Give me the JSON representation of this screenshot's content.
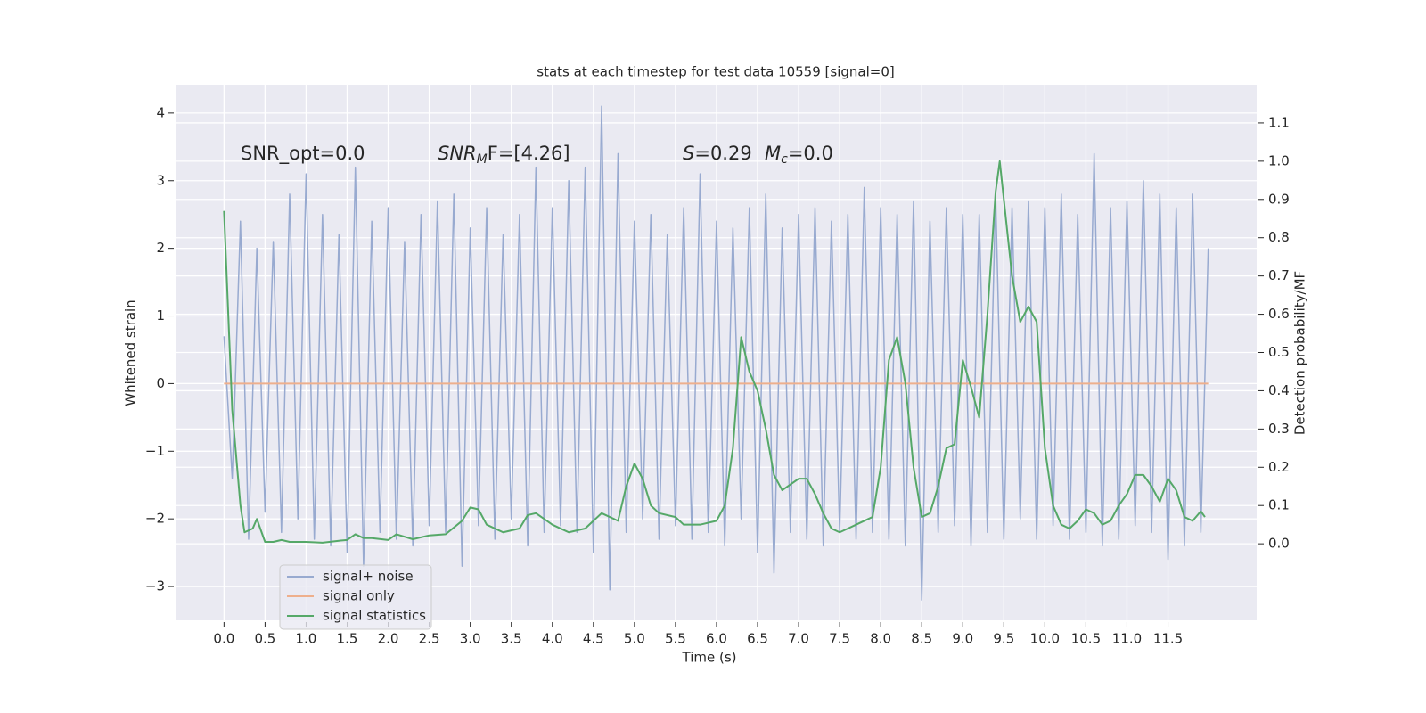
{
  "chart_data": {
    "type": "line",
    "title": "stats at each timestep for test data 10559 [signal=0]",
    "x_label": "Time (s)",
    "y_label": "Whitened strain",
    "y2_label": "Detection probability/MF",
    "xlim": [
      -0.59,
      12.58
    ],
    "ylim": [
      -3.5,
      4.42
    ],
    "y2lim": [
      -0.2,
      1.2
    ],
    "xticks": [
      {
        "value": 0,
        "label": "0.0"
      },
      0.5,
      {
        "value": 1,
        "label": "1.0"
      },
      1.5,
      {
        "value": 2,
        "label": "2.0"
      },
      2.5,
      {
        "value": 3,
        "label": "3.0"
      },
      3.5,
      {
        "value": 4,
        "label": "4.0"
      },
      4.5,
      {
        "value": 5,
        "label": "5.0"
      },
      5.5,
      {
        "value": 6,
        "label": "6.0"
      },
      6.5,
      {
        "value": 7,
        "label": "7.0"
      },
      7.5,
      {
        "value": 8,
        "label": "8.0"
      },
      8.5,
      {
        "value": 9,
        "label": "9.0"
      },
      9.5,
      {
        "value": 10,
        "label": "10.0"
      },
      10.5,
      {
        "value": 11,
        "label": "11.0"
      },
      11.5
    ],
    "yticks": [
      {
        "value": -3,
        "label": "−3"
      },
      {
        "value": -2,
        "label": "−2"
      },
      {
        "value": -1,
        "label": "−1"
      },
      0,
      1,
      2,
      3,
      4
    ],
    "y2ticks": [
      {
        "value": 0,
        "label": "0.0"
      },
      0.1,
      0.2,
      0.3,
      0.4,
      0.5,
      0.6,
      0.7,
      0.8,
      0.9,
      {
        "value": 1,
        "label": "1.0"
      },
      1.1
    ],
    "grid": true,
    "legend": "lower left",
    "annotations": [
      {
        "text": "SNR_opt=0.0"
      },
      {
        "base": "SNR",
        "sub": "M",
        "rest": "F=[4.26]"
      },
      {
        "base": "S",
        "rest": "=0.29"
      },
      {
        "base": "M",
        "sub": "c",
        "rest": "=0.0"
      }
    ],
    "series": [
      {
        "name": "signal+ noise",
        "color": "#98aad0",
        "axis": "y",
        "x": [
          0,
          0.1,
          0.2,
          0.3,
          0.4,
          0.5,
          0.6,
          0.7,
          0.8,
          0.9,
          1,
          1.1,
          1.2,
          1.3,
          1.4,
          1.5,
          1.6,
          1.7,
          1.8,
          1.9,
          2,
          2.1,
          2.2,
          2.3,
          2.4,
          2.5,
          2.6,
          2.7,
          2.8,
          2.9,
          3,
          3.1,
          3.2,
          3.3,
          3.4,
          3.5,
          3.6,
          3.7,
          3.8,
          3.9,
          4,
          4.1,
          4.2,
          4.3,
          4.4,
          4.5,
          4.6,
          4.7,
          4.8,
          4.9,
          5,
          5.1,
          5.2,
          5.3,
          5.4,
          5.5,
          5.6,
          5.7,
          5.8,
          5.9,
          6,
          6.1,
          6.2,
          6.3,
          6.4,
          6.5,
          6.6,
          6.7,
          6.8,
          6.9,
          7,
          7.1,
          7.2,
          7.3,
          7.4,
          7.5,
          7.6,
          7.7,
          7.8,
          7.9,
          8,
          8.1,
          8.2,
          8.3,
          8.4,
          8.5,
          8.6,
          8.7,
          8.8,
          8.9,
          9,
          9.1,
          9.2,
          9.3,
          9.4,
          9.5,
          9.6,
          9.7,
          9.8,
          9.9,
          10,
          10.1,
          10.2,
          10.3,
          10.4,
          10.5,
          10.6,
          10.7,
          10.8,
          10.9,
          11,
          11.1,
          11.2,
          11.3,
          11.4,
          11.5,
          11.6,
          11.7,
          11.8,
          11.9,
          11.99
        ],
        "values": [
          0.7,
          -1.4,
          2.4,
          -2.3,
          2.0,
          -1.9,
          2.1,
          -2.2,
          2.8,
          -2.0,
          3.1,
          -2.3,
          2.5,
          -2.4,
          2.2,
          -2.5,
          3.2,
          -2.7,
          2.4,
          -2.2,
          2.6,
          -2.3,
          2.1,
          -2.4,
          2.5,
          -2.1,
          2.7,
          -2.2,
          2.8,
          -2.7,
          2.3,
          -2.1,
          2.6,
          -2.3,
          2.2,
          -2.0,
          2.5,
          -2.4,
          3.2,
          -2.2,
          2.6,
          -2.1,
          3.0,
          -2.2,
          3.2,
          -2.5,
          4.1,
          -3.05,
          3.4,
          -2.2,
          2.4,
          -2.0,
          2.5,
          -2.3,
          2.2,
          -2.1,
          2.6,
          -2.3,
          3.1,
          -2.2,
          2.4,
          -2.4,
          2.3,
          -2.0,
          2.6,
          -2.5,
          2.8,
          -2.8,
          2.3,
          -2.2,
          2.5,
          -2.3,
          2.6,
          -2.4,
          2.4,
          -2.2,
          2.5,
          -2.3,
          2.9,
          -2.2,
          2.6,
          -2.3,
          2.5,
          -2.4,
          2.7,
          -3.2,
          2.4,
          -2.2,
          2.6,
          -2.1,
          2.5,
          -2.4,
          2.5,
          -2.2,
          2.8,
          -2.3,
          2.6,
          -2.0,
          2.7,
          -2.3,
          2.6,
          -2.1,
          2.8,
          -2.3,
          2.5,
          -2.2,
          3.4,
          -2.4,
          2.6,
          -2.3,
          2.7,
          -2.1,
          3.0,
          -2.2,
          2.8,
          -2.6,
          2.6,
          -2.4,
          2.8,
          -2.2,
          2.0
        ]
      },
      {
        "name": "signal only",
        "color": "#eeaf8c",
        "axis": "y",
        "x": [
          0,
          11.99
        ],
        "values": [
          0,
          0
        ]
      },
      {
        "name": "signal statistics",
        "color": "#55a868",
        "axis": "y2",
        "x": [
          0,
          0.1,
          0.2,
          0.25,
          0.35,
          0.4,
          0.5,
          0.6,
          0.7,
          0.8,
          1.0,
          1.2,
          1.4,
          1.5,
          1.6,
          1.7,
          1.8,
          2.0,
          2.1,
          2.3,
          2.5,
          2.7,
          2.9,
          3.0,
          3.1,
          3.2,
          3.4,
          3.6,
          3.7,
          3.8,
          4.0,
          4.2,
          4.4,
          4.5,
          4.6,
          4.7,
          4.8,
          4.9,
          5.0,
          5.1,
          5.2,
          5.3,
          5.5,
          5.6,
          5.8,
          6.0,
          6.1,
          6.2,
          6.3,
          6.4,
          6.5,
          6.6,
          6.7,
          6.8,
          7.0,
          7.1,
          7.2,
          7.3,
          7.4,
          7.5,
          7.6,
          7.7,
          7.9,
          8.0,
          8.1,
          8.2,
          8.3,
          8.4,
          8.5,
          8.6,
          8.7,
          8.8,
          8.9,
          9.0,
          9.1,
          9.2,
          9.3,
          9.4,
          9.45,
          9.5,
          9.6,
          9.7,
          9.8,
          9.9,
          10.0,
          10.1,
          10.2,
          10.3,
          10.4,
          10.5,
          10.6,
          10.7,
          10.8,
          10.9,
          11.0,
          11.1,
          11.2,
          11.3,
          11.4,
          11.5,
          11.6,
          11.7,
          11.8,
          11.9,
          11.95
        ],
        "values": [
          0.87,
          0.35,
          0.1,
          0.03,
          0.04,
          0.065,
          0.005,
          0.005,
          0.01,
          0.005,
          0.005,
          0.003,
          0.008,
          0.01,
          0.025,
          0.015,
          0.015,
          0.01,
          0.025,
          0.012,
          0.022,
          0.025,
          0.06,
          0.095,
          0.09,
          0.05,
          0.03,
          0.04,
          0.075,
          0.08,
          0.05,
          0.03,
          0.04,
          0.06,
          0.08,
          0.07,
          0.06,
          0.15,
          0.21,
          0.17,
          0.1,
          0.08,
          0.07,
          0.05,
          0.05,
          0.06,
          0.1,
          0.25,
          0.54,
          0.45,
          0.4,
          0.3,
          0.18,
          0.14,
          0.17,
          0.17,
          0.13,
          0.08,
          0.04,
          0.03,
          0.04,
          0.05,
          0.07,
          0.2,
          0.48,
          0.54,
          0.42,
          0.2,
          0.07,
          0.08,
          0.15,
          0.25,
          0.26,
          0.48,
          0.41,
          0.33,
          0.6,
          0.92,
          1.0,
          0.9,
          0.7,
          0.58,
          0.62,
          0.58,
          0.25,
          0.1,
          0.05,
          0.04,
          0.06,
          0.09,
          0.08,
          0.05,
          0.06,
          0.1,
          0.13,
          0.18,
          0.18,
          0.15,
          0.11,
          0.17,
          0.14,
          0.07,
          0.06,
          0.085,
          0.07
        ]
      }
    ]
  }
}
